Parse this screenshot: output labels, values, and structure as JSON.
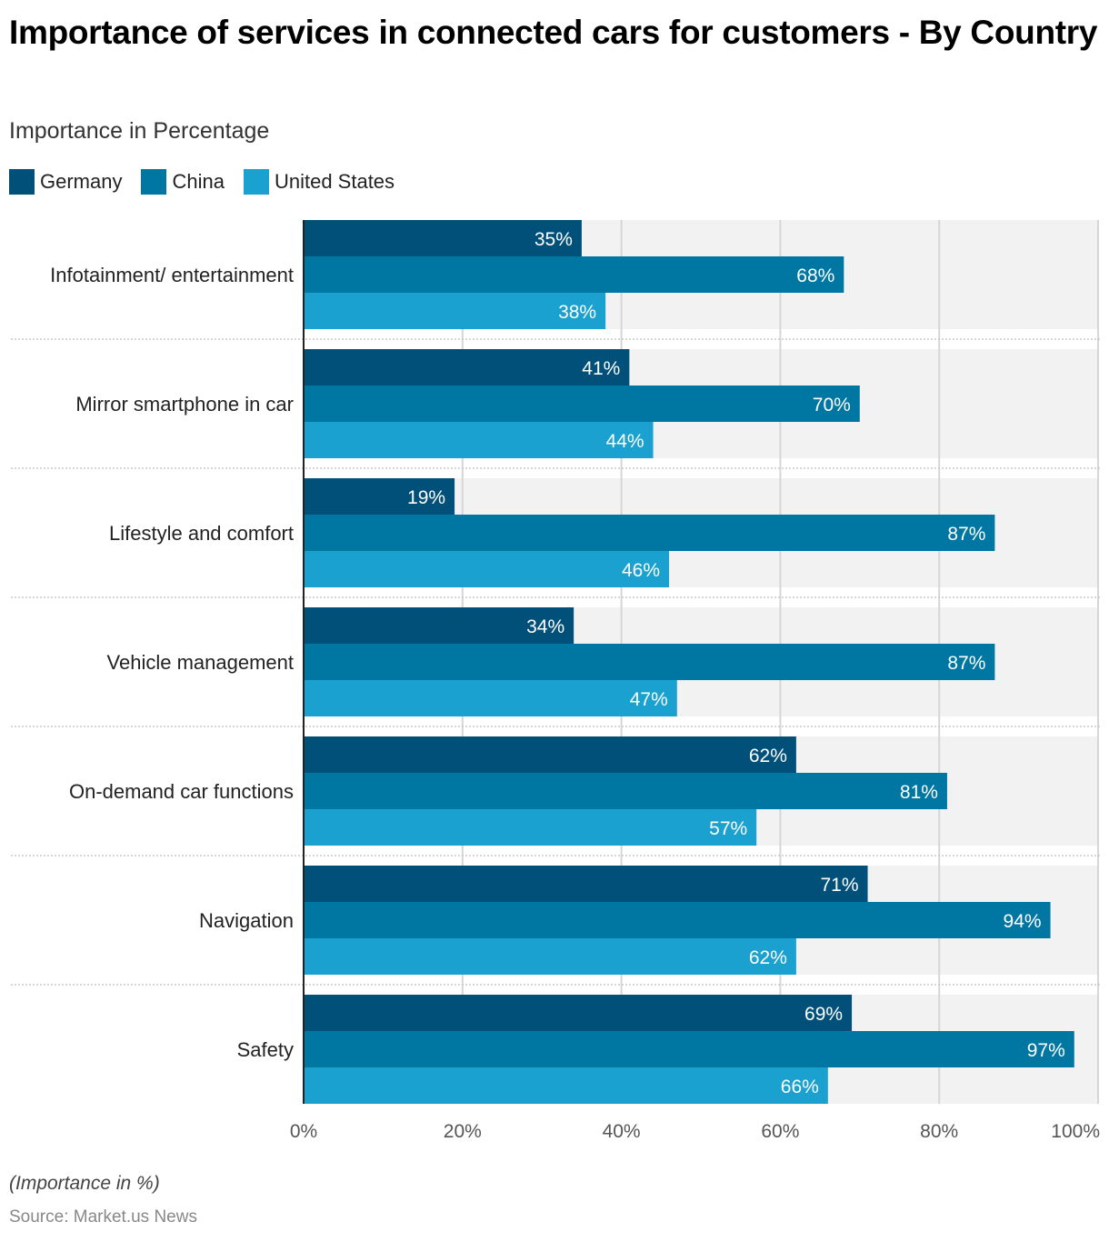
{
  "header": {
    "title": "Importance of services in connected cars for customers - By Country",
    "subtitle": "Importance in Percentage"
  },
  "legend": [
    {
      "label": "Germany",
      "color": "#00507a"
    },
    {
      "label": "China",
      "color": "#0077a3"
    },
    {
      "label": "United States",
      "color": "#1aa1cf"
    }
  ],
  "footer": {
    "note": "(Importance in %)",
    "source": "Source: Market.us News"
  },
  "chart_data": {
    "type": "bar",
    "orientation": "horizontal",
    "title": "Importance of services in connected cars for customers - By Country",
    "subtitle": "Importance in Percentage",
    "categories": [
      "Infotainment/ entertainment",
      "Mirror smartphone in car",
      "Lifestyle and comfort",
      "Vehicle management",
      "On-demand car functions",
      "Navigation",
      "Safety"
    ],
    "series": [
      {
        "name": "Germany",
        "color": "#00507a",
        "values": [
          35,
          41,
          19,
          34,
          62,
          71,
          69
        ]
      },
      {
        "name": "China",
        "color": "#0077a3",
        "values": [
          68,
          70,
          87,
          87,
          81,
          94,
          97
        ]
      },
      {
        "name": "United States",
        "color": "#1aa1cf",
        "values": [
          38,
          44,
          46,
          47,
          57,
          62,
          66
        ]
      }
    ],
    "xlabel": "",
    "ylabel": "",
    "xlim": [
      0,
      100
    ],
    "xticks": [
      0,
      20,
      40,
      60,
      80,
      100
    ],
    "xtick_labels": [
      "0%",
      "20%",
      "40%",
      "60%",
      "80%",
      "100%"
    ],
    "value_suffix": "%",
    "grid": true,
    "legend_position": "top-left"
  }
}
